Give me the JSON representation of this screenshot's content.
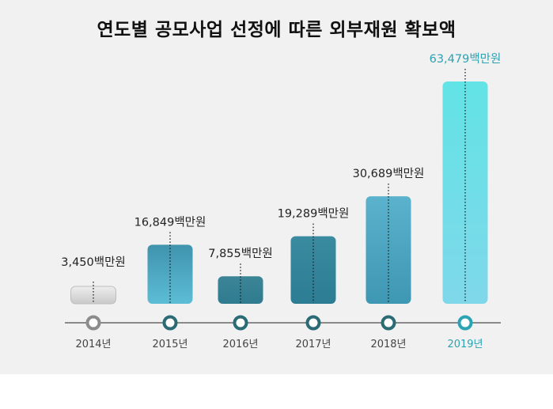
{
  "title": "연도별 공모사업 선정에 따른 외부재원 확보액",
  "colors": {
    "background": "#f1f1f1",
    "timeline": "#8a8a8a",
    "highlight": "#2aa3b4",
    "label_text": "#222222",
    "year_text": "#444444"
  },
  "chart_data": {
    "type": "bar",
    "title": "연도별 공모사업 선정에 따른 외부재원 확보액",
    "xlabel": "",
    "ylabel": "",
    "unit": "백만원",
    "categories": [
      "2014년",
      "2015년",
      "2016년",
      "2017년",
      "2018년",
      "2019년"
    ],
    "values": [
      3450,
      16849,
      7855,
      19289,
      30689,
      63479
    ],
    "value_labels": [
      "3,450백만원",
      "16,849백만원",
      "7,855백만원",
      "19,289백만원",
      "30,689백만원",
      "63,479백만원"
    ],
    "highlight_index": 5,
    "grid": false,
    "legend": "none",
    "bar_styles": [
      {
        "top": "#eeeeee",
        "bottom": "#c9c9c9"
      },
      {
        "top": "#3f93ad",
        "bottom": "#5dbdd6"
      },
      {
        "top": "#3c8597",
        "bottom": "#2f7b8f"
      },
      {
        "top": "#3a8aa0",
        "bottom": "#2c7d93"
      },
      {
        "top": "#5ab2cc",
        "bottom": "#3e97b3"
      },
      {
        "top": "#62e3e5",
        "bottom": "#7fd8ea"
      }
    ]
  }
}
